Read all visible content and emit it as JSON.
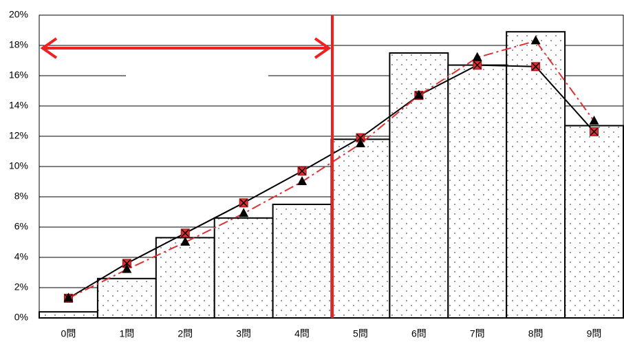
{
  "chart_data": {
    "type": "bar_line",
    "categories": [
      "0問",
      "1問",
      "2問",
      "3問",
      "4問",
      "5問",
      "6問",
      "7問",
      "8問",
      "9問"
    ],
    "values": [
      0.4,
      2.6,
      5.3,
      6.6,
      7.5,
      11.8,
      17.5,
      16.7,
      18.9,
      12.7
    ],
    "series": [
      {
        "color": "#000000",
        "marker_color": "#e03030",
        "values": [
          1.3,
          3.6,
          5.6,
          7.6,
          9.7,
          11.9,
          14.7,
          16.7,
          16.6,
          12.3
        ]
      },
      {
        "color": "#e03030",
        "marker_color": "#000000",
        "values": [
          1.3,
          3.2,
          5.0,
          6.9,
          9.0,
          11.5,
          14.7,
          17.2,
          18.3,
          13.0
        ]
      }
    ],
    "ylim": [
      0,
      20
    ],
    "yticks": [
      {
        "value": 0,
        "label": "0%"
      },
      {
        "value": 2,
        "label": "2%"
      },
      {
        "value": 4,
        "label": "4%"
      },
      {
        "value": 6,
        "label": "6%"
      },
      {
        "value": 8,
        "label": "8%"
      },
      {
        "value": 10,
        "label": "10%"
      },
      {
        "value": 12,
        "label": "12%"
      },
      {
        "value": 14,
        "label": "14%"
      },
      {
        "value": 16,
        "label": "16%"
      },
      {
        "value": 18,
        "label": "18%"
      },
      {
        "value": 20,
        "label": "20%"
      }
    ],
    "grid": true
  }
}
